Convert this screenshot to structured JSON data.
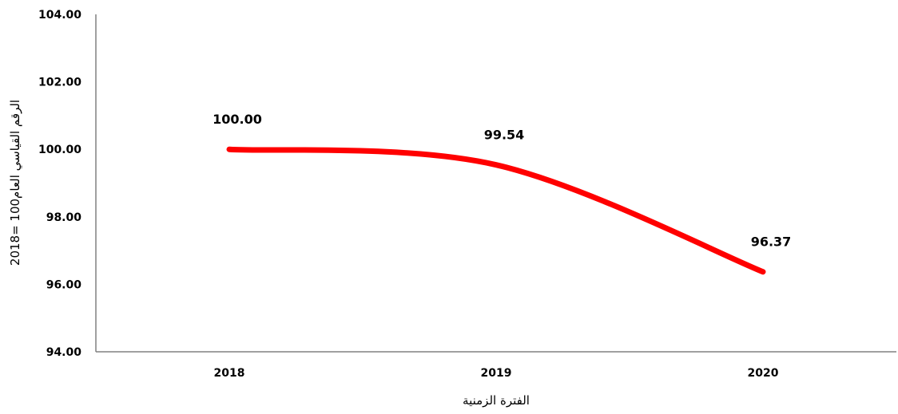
{
  "chart_data": {
    "type": "line",
    "x": [
      "2018",
      "2019",
      "2020"
    ],
    "series": [
      {
        "values": [
          100.0,
          99.54,
          96.37
        ]
      }
    ],
    "data_labels": [
      "100.00",
      "99.54",
      "96.37"
    ],
    "y_ticks": [
      "94.00",
      "96.00",
      "98.00",
      "100.00",
      "102.00",
      "104.00"
    ],
    "ylim": [
      94,
      104
    ],
    "xlabel": "الفترة الزمنية",
    "ylabel": "الرقم القياسي العام100  =2018",
    "grid": false,
    "legend": "none",
    "smooth": true,
    "line_color": "#ff0000"
  }
}
